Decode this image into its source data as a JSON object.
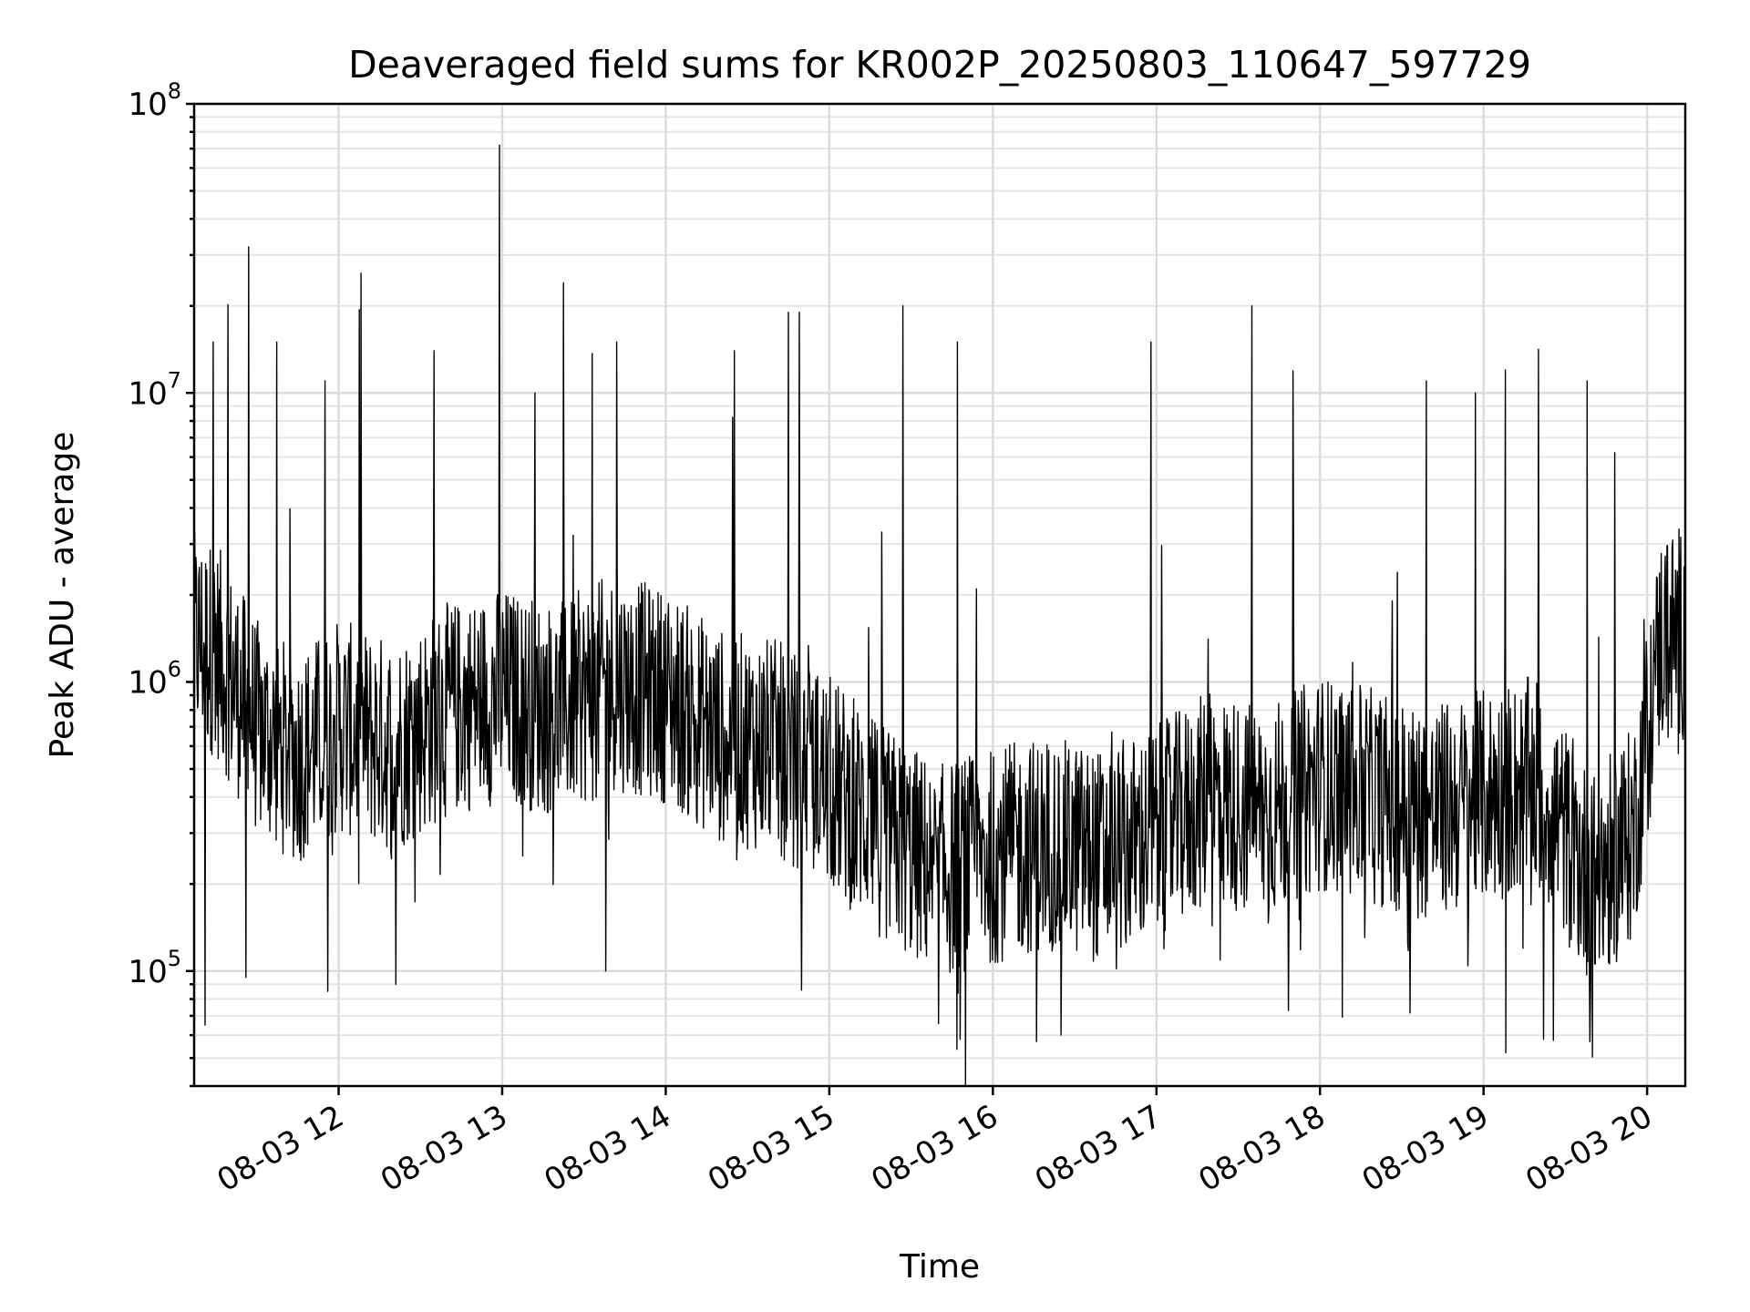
{
  "chart_data": {
    "type": "line",
    "title": "Deaveraged field sums for KR002P_20250803_110647_597729",
    "xlabel": "Time",
    "ylabel": "Peak ADU - average",
    "y_scale": "log",
    "ylim": [
      40000,
      100000000
    ],
    "xlim": [
      "2025-08-03 11:07",
      "2025-08-03 20:14"
    ],
    "grid": true,
    "line_color": "#000000",
    "x_ticks": [
      {
        "t": "2025-08-03 12:00",
        "label": "08-03 12"
      },
      {
        "t": "2025-08-03 13:00",
        "label": "08-03 13"
      },
      {
        "t": "2025-08-03 14:00",
        "label": "08-03 14"
      },
      {
        "t": "2025-08-03 15:00",
        "label": "08-03 15"
      },
      {
        "t": "2025-08-03 16:00",
        "label": "08-03 16"
      },
      {
        "t": "2025-08-03 17:00",
        "label": "08-03 17"
      },
      {
        "t": "2025-08-03 18:00",
        "label": "08-03 18"
      },
      {
        "t": "2025-08-03 19:00",
        "label": "08-03 19"
      },
      {
        "t": "2025-08-03 20:00",
        "label": "08-03 20"
      }
    ],
    "y_ticks": [
      {
        "value": 100000,
        "base": "10",
        "exp": "5"
      },
      {
        "value": 1000000,
        "base": "10",
        "exp": "6"
      },
      {
        "value": 10000000,
        "base": "10",
        "exp": "7"
      },
      {
        "value": 100000000,
        "base": "10",
        "exp": "8"
      }
    ],
    "series": [
      {
        "baseline": [
          {
            "t": "2025-08-03 11:07",
            "y": 1400000
          },
          {
            "t": "2025-08-03 11:15",
            "y": 1300000
          },
          {
            "t": "2025-08-03 11:30",
            "y": 700000
          },
          {
            "t": "2025-08-03 11:45",
            "y": 550000
          },
          {
            "t": "2025-08-03 12:00",
            "y": 700000
          },
          {
            "t": "2025-08-03 12:20",
            "y": 600000
          },
          {
            "t": "2025-08-03 12:40",
            "y": 800000
          },
          {
            "t": "2025-08-03 13:00",
            "y": 900000
          },
          {
            "t": "2025-08-03 13:20",
            "y": 800000
          },
          {
            "t": "2025-08-03 13:40",
            "y": 1000000
          },
          {
            "t": "2025-08-03 14:00",
            "y": 900000
          },
          {
            "t": "2025-08-03 14:20",
            "y": 650000
          },
          {
            "t": "2025-08-03 14:40",
            "y": 600000
          },
          {
            "t": "2025-08-03 15:00",
            "y": 450000
          },
          {
            "t": "2025-08-03 15:20",
            "y": 300000
          },
          {
            "t": "2025-08-03 15:40",
            "y": 220000
          },
          {
            "t": "2025-08-03 16:00",
            "y": 250000
          },
          {
            "t": "2025-08-03 16:20",
            "y": 280000
          },
          {
            "t": "2025-08-03 16:40",
            "y": 250000
          },
          {
            "t": "2025-08-03 17:00",
            "y": 300000
          },
          {
            "t": "2025-08-03 17:20",
            "y": 400000
          },
          {
            "t": "2025-08-03 17:40",
            "y": 350000
          },
          {
            "t": "2025-08-03 18:00",
            "y": 450000
          },
          {
            "t": "2025-08-03 18:20",
            "y": 400000
          },
          {
            "t": "2025-08-03 18:40",
            "y": 350000
          },
          {
            "t": "2025-08-03 19:00",
            "y": 400000
          },
          {
            "t": "2025-08-03 19:20",
            "y": 450000
          },
          {
            "t": "2025-08-03 19:40",
            "y": 200000
          },
          {
            "t": "2025-08-03 19:55",
            "y": 300000
          },
          {
            "t": "2025-08-03 20:05",
            "y": 1400000
          },
          {
            "t": "2025-08-03 20:14",
            "y": 1500000
          }
        ],
        "spikes": [
          {
            "t": "2025-08-03 11:14",
            "y": 15000000
          },
          {
            "t": "2025-08-03 11:27",
            "y": 32000000
          },
          {
            "t": "2025-08-03 11:55",
            "y": 11000000
          },
          {
            "t": "2025-08-03 12:35",
            "y": 14000000
          },
          {
            "t": "2025-08-03 12:59",
            "y": 72000000
          },
          {
            "t": "2025-08-03 13:12",
            "y": 10000000
          },
          {
            "t": "2025-08-03 13:42",
            "y": 15000000
          },
          {
            "t": "2025-08-03 14:45",
            "y": 19000000
          },
          {
            "t": "2025-08-03 14:49",
            "y": 19000000
          },
          {
            "t": "2025-08-03 15:27",
            "y": 20000000
          },
          {
            "t": "2025-08-03 15:47",
            "y": 15000000
          },
          {
            "t": "2025-08-03 16:58",
            "y": 15000000
          },
          {
            "t": "2025-08-03 17:35",
            "y": 20000000
          },
          {
            "t": "2025-08-03 18:39",
            "y": 11000000
          },
          {
            "t": "2025-08-03 18:57",
            "y": 10000000
          },
          {
            "t": "2025-08-03 19:08",
            "y": 12000000
          },
          {
            "t": "2025-08-03 19:38",
            "y": 11000000
          }
        ],
        "dips": [
          {
            "t": "2025-08-03 11:11",
            "y": 65000
          },
          {
            "t": "2025-08-03 11:26",
            "y": 95000
          },
          {
            "t": "2025-08-03 11:56",
            "y": 85000
          },
          {
            "t": "2025-08-03 12:21",
            "y": 90000
          },
          {
            "t": "2025-08-03 13:38",
            "y": 100000
          },
          {
            "t": "2025-08-03 15:48",
            "y": 58000
          },
          {
            "t": "2025-08-03 16:16",
            "y": 57000
          },
          {
            "t": "2025-08-03 16:25",
            "y": 60000
          },
          {
            "t": "2025-08-03 19:22",
            "y": 58000
          },
          {
            "t": "2025-08-03 19:39",
            "y": 57000
          }
        ]
      }
    ]
  }
}
